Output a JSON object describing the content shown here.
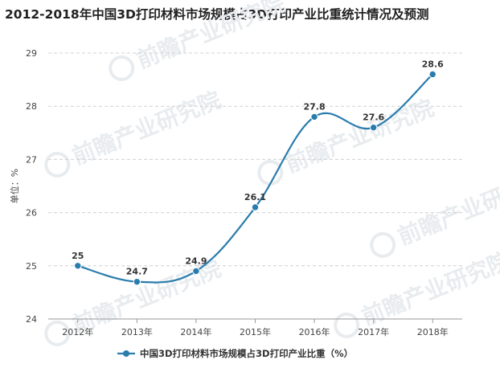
{
  "title": "2012-2018年中国3D打印材料市场规模占3D打印产业比重统计情况及预测",
  "chart_data": {
    "type": "line",
    "title": "2012-2018年中国3D打印材料市场规模占3D打印产业比重统计情况及预测",
    "ylabel": "单位：%",
    "xlabel": "",
    "categories": [
      "2012年",
      "2013年",
      "2014年",
      "2015年",
      "2016年",
      "2017年",
      "2018年"
    ],
    "y_ticks": [
      24,
      25,
      26,
      27,
      28,
      29
    ],
    "ylim": [
      24,
      29
    ],
    "grid": true,
    "legend_position": "bottom",
    "series": [
      {
        "name": "中国3D打印材料市场规模占3D打印产业比重（%）",
        "values": [
          25,
          24.7,
          24.9,
          26.1,
          27.8,
          27.6,
          28.6
        ],
        "labels": [
          "25",
          "24.7",
          "24.9",
          "26.1",
          "27.8",
          "27.6",
          "28.6"
        ],
        "color": "#2a7cad"
      }
    ]
  },
  "watermark": "前瞻产业研究院"
}
